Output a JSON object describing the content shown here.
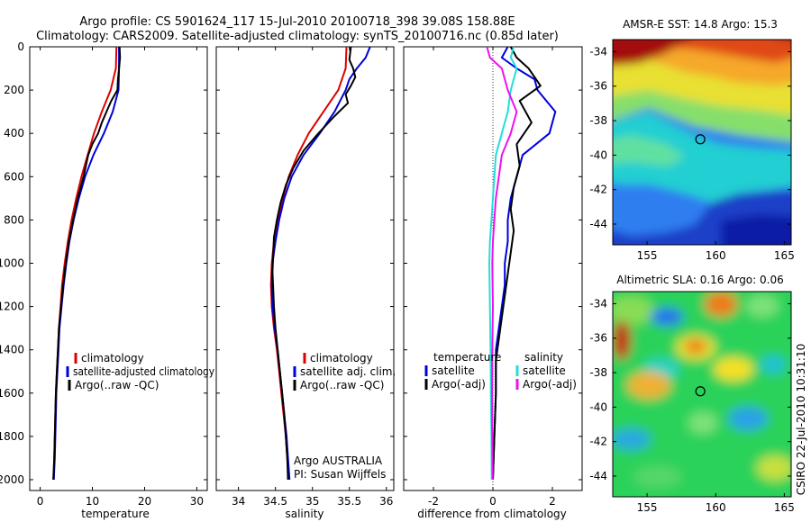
{
  "figure": {
    "title_line1": "Argo profile: CS 5901624_117 15-Jul-2010 20100718_398 39.08S 158.88E",
    "title_line2": "Climatology: CARS2009. Satellite-adjusted climatology: synTS_20100716.nc (0.85d later)",
    "side_label": "CSIRO 22-Jul-2010 10:31:10",
    "credit_line1": "Argo AUSTRALIA",
    "credit_line2": "PI: Susan Wijffels"
  },
  "colors": {
    "climatology": "#dd0000",
    "satellite": "#0000dd",
    "argo": "#000000",
    "salinity_satellite": "#22dddd",
    "salinity_argo": "#ee11ee"
  },
  "chart_data": [
    {
      "type": "line",
      "panel": "temperature",
      "xlabel": "temperature",
      "ylabel": "",
      "xlim": [
        -2,
        32
      ],
      "ylim": [
        2050,
        0
      ],
      "y_reversed": true,
      "xticks": [
        0,
        10,
        20,
        30
      ],
      "yticks": [
        0,
        200,
        400,
        600,
        800,
        1000,
        1200,
        1400,
        1600,
        1800,
        2000
      ],
      "legend_position": "lower-center",
      "legend": [
        "climatology",
        "satellite-adjusted climatology",
        "Argo(..raw -QC)"
      ],
      "series": [
        {
          "name": "climatology",
          "color_key": "climatology",
          "points": [
            [
              14.6,
              0
            ],
            [
              14.5,
              100
            ],
            [
              13.5,
              200
            ],
            [
              11.8,
              300
            ],
            [
              10.3,
              400
            ],
            [
              9.1,
              500
            ],
            [
              7.9,
              600
            ],
            [
              6.9,
              700
            ],
            [
              6.0,
              800
            ],
            [
              5.3,
              900
            ],
            [
              4.7,
              1000
            ],
            [
              4.2,
              1100
            ],
            [
              3.9,
              1200
            ],
            [
              3.6,
              1300
            ],
            [
              3.4,
              1400
            ],
            [
              3.2,
              1500
            ],
            [
              3.0,
              1600
            ],
            [
              2.9,
              1700
            ],
            [
              2.8,
              1800
            ],
            [
              2.7,
              1900
            ],
            [
              2.6,
              2000
            ]
          ]
        },
        {
          "name": "satellite-adjusted climatology",
          "color_key": "satellite",
          "points": [
            [
              15.1,
              0
            ],
            [
              15.1,
              100
            ],
            [
              15.0,
              200
            ],
            [
              13.9,
              300
            ],
            [
              12.2,
              400
            ],
            [
              10.2,
              500
            ],
            [
              8.6,
              600
            ],
            [
              7.4,
              700
            ],
            [
              6.4,
              800
            ],
            [
              5.6,
              900
            ],
            [
              5.0,
              1000
            ],
            [
              4.5,
              1100
            ],
            [
              4.1,
              1200
            ],
            [
              3.7,
              1300
            ],
            [
              3.5,
              1400
            ],
            [
              3.3,
              1500
            ],
            [
              3.1,
              1600
            ],
            [
              3.0,
              1700
            ],
            [
              2.9,
              1800
            ],
            [
              2.8,
              1900
            ],
            [
              2.6,
              2000
            ]
          ]
        },
        {
          "name": "Argo(..raw -QC)",
          "color_key": "argo",
          "points": [
            [
              15.2,
              0
            ],
            [
              15.3,
              50
            ],
            [
              15.1,
              100
            ],
            [
              14.9,
              150
            ],
            [
              14.8,
              200
            ],
            [
              13.6,
              250
            ],
            [
              12.7,
              300
            ],
            [
              11.8,
              350
            ],
            [
              11.1,
              400
            ],
            [
              10.0,
              450
            ],
            [
              9.2,
              500
            ],
            [
              8.3,
              600
            ],
            [
              7.2,
              700
            ],
            [
              6.3,
              800
            ],
            [
              5.5,
              900
            ],
            [
              4.9,
              1000
            ],
            [
              4.4,
              1100
            ],
            [
              4.0,
              1200
            ],
            [
              3.6,
              1300
            ],
            [
              3.4,
              1400
            ],
            [
              3.2,
              1500
            ],
            [
              3.0,
              1600
            ],
            [
              2.9,
              1700
            ],
            [
              2.8,
              1800
            ],
            [
              2.7,
              1900
            ],
            [
              2.5,
              2000
            ]
          ]
        }
      ]
    },
    {
      "type": "line",
      "panel": "salinity",
      "xlabel": "salinity",
      "ylabel": "",
      "xlim": [
        33.7,
        36.1
      ],
      "ylim": [
        2050,
        0
      ],
      "y_reversed": true,
      "xticks": [
        34,
        34.5,
        35,
        35.5,
        36
      ],
      "xtick_labels": [
        "34",
        "34.5",
        "35",
        "35.5",
        "36"
      ],
      "yticks": [
        0,
        200,
        400,
        600,
        800,
        1000,
        1200,
        1400,
        1600,
        1800,
        2000
      ],
      "legend_position": "lower-center",
      "legend": [
        "climatology",
        "satellite adj. clim.",
        "Argo(..raw -QC)"
      ],
      "series": [
        {
          "name": "climatology",
          "color_key": "climatology",
          "points": [
            [
              35.46,
              0
            ],
            [
              35.45,
              100
            ],
            [
              35.35,
              200
            ],
            [
              35.15,
              300
            ],
            [
              34.95,
              400
            ],
            [
              34.8,
              500
            ],
            [
              34.68,
              600
            ],
            [
              34.6,
              700
            ],
            [
              34.53,
              800
            ],
            [
              34.48,
              900
            ],
            [
              34.45,
              1000
            ],
            [
              34.44,
              1100
            ],
            [
              34.45,
              1200
            ],
            [
              34.48,
              1300
            ],
            [
              34.52,
              1400
            ],
            [
              34.55,
              1500
            ],
            [
              34.58,
              1600
            ],
            [
              34.61,
              1700
            ],
            [
              34.64,
              1800
            ],
            [
              34.66,
              1900
            ],
            [
              34.68,
              2000
            ]
          ]
        },
        {
          "name": "satellite adj. clim.",
          "color_key": "satellite",
          "points": [
            [
              35.78,
              0
            ],
            [
              35.72,
              50
            ],
            [
              35.6,
              100
            ],
            [
              35.5,
              150
            ],
            [
              35.45,
              200
            ],
            [
              35.3,
              300
            ],
            [
              35.1,
              400
            ],
            [
              34.88,
              500
            ],
            [
              34.72,
              600
            ],
            [
              34.62,
              700
            ],
            [
              34.55,
              800
            ],
            [
              34.5,
              900
            ],
            [
              34.46,
              1000
            ],
            [
              34.45,
              1100
            ],
            [
              34.46,
              1200
            ],
            [
              34.49,
              1300
            ],
            [
              34.53,
              1400
            ],
            [
              34.56,
              1500
            ],
            [
              34.59,
              1600
            ],
            [
              34.62,
              1700
            ],
            [
              34.65,
              1800
            ],
            [
              34.67,
              1900
            ],
            [
              34.69,
              2000
            ]
          ]
        },
        {
          "name": "Argo(..raw -QC)",
          "color_key": "argo",
          "points": [
            [
              35.52,
              0
            ],
            [
              35.5,
              60
            ],
            [
              35.55,
              100
            ],
            [
              35.58,
              140
            ],
            [
              35.52,
              180
            ],
            [
              35.45,
              220
            ],
            [
              35.48,
              260
            ],
            [
              35.3,
              320
            ],
            [
              35.08,
              400
            ],
            [
              34.88,
              480
            ],
            [
              34.74,
              560
            ],
            [
              34.64,
              640
            ],
            [
              34.57,
              720
            ],
            [
              34.52,
              800
            ],
            [
              34.48,
              880
            ],
            [
              34.47,
              960
            ],
            [
              34.46,
              1040
            ],
            [
              34.47,
              1120
            ],
            [
              34.48,
              1200
            ],
            [
              34.5,
              1300
            ],
            [
              34.53,
              1400
            ],
            [
              34.56,
              1500
            ],
            [
              34.59,
              1600
            ],
            [
              34.62,
              1700
            ],
            [
              34.64,
              1800
            ],
            [
              34.66,
              1900
            ],
            [
              34.67,
              2000
            ]
          ]
        }
      ]
    },
    {
      "type": "line",
      "panel": "difference",
      "xlabel": "difference from climatology",
      "ylabel": "",
      "xlim": [
        -3,
        3
      ],
      "ylim": [
        2050,
        0
      ],
      "y_reversed": true,
      "xticks": [
        -2,
        0,
        2
      ],
      "yticks": [
        0,
        200,
        400,
        600,
        800,
        1000,
        1200,
        1400,
        1600,
        1800,
        2000
      ],
      "zero_line": "dotted",
      "legend_position": "lower-center",
      "legend_temperature_title": "temperature",
      "legend_salinity_title": "salinity",
      "legend_temperature": [
        "satellite",
        "Argo(-adj)"
      ],
      "legend_salinity": [
        "satellite",
        "Argo(-adj)"
      ],
      "series": [
        {
          "name": "temperature satellite",
          "color_key": "satellite",
          "points": [
            [
              0.5,
              0
            ],
            [
              0.3,
              50
            ],
            [
              0.8,
              100
            ],
            [
              1.4,
              150
            ],
            [
              1.5,
              200
            ],
            [
              2.1,
              300
            ],
            [
              1.9,
              400
            ],
            [
              1.0,
              500
            ],
            [
              0.8,
              600
            ],
            [
              0.6,
              700
            ],
            [
              0.5,
              800
            ],
            [
              0.5,
              900
            ],
            [
              0.4,
              1000
            ],
            [
              0.4,
              1100
            ],
            [
              0.3,
              1200
            ],
            [
              0.2,
              1300
            ],
            [
              0.1,
              1400
            ],
            [
              0.1,
              1600
            ],
            [
              0.05,
              1800
            ],
            [
              0.0,
              2000
            ]
          ]
        },
        {
          "name": "temperature Argo(-adj)",
          "color_key": "argo",
          "points": [
            [
              0.6,
              0
            ],
            [
              0.8,
              50
            ],
            [
              1.2,
              100
            ],
            [
              1.6,
              180
            ],
            [
              0.9,
              250
            ],
            [
              1.3,
              350
            ],
            [
              0.8,
              450
            ],
            [
              0.9,
              550
            ],
            [
              0.7,
              650
            ],
            [
              0.6,
              750
            ],
            [
              0.7,
              850
            ],
            [
              0.6,
              950
            ],
            [
              0.5,
              1050
            ],
            [
              0.4,
              1150
            ],
            [
              0.3,
              1250
            ],
            [
              0.2,
              1350
            ],
            [
              0.1,
              1450
            ],
            [
              0.1,
              1600
            ],
            [
              0.05,
              1800
            ],
            [
              0.0,
              2000
            ]
          ]
        },
        {
          "name": "salinity satellite",
          "color_key": "salinity_satellite",
          "points": [
            [
              0.7,
              0
            ],
            [
              0.6,
              50
            ],
            [
              0.8,
              100
            ],
            [
              0.6,
              200
            ],
            [
              0.5,
              300
            ],
            [
              0.3,
              400
            ],
            [
              0.1,
              500
            ],
            [
              0.05,
              600
            ],
            [
              0.0,
              700
            ],
            [
              -0.05,
              800
            ],
            [
              -0.1,
              900
            ],
            [
              -0.12,
              1000
            ],
            [
              -0.1,
              1200
            ],
            [
              -0.08,
              1400
            ],
            [
              -0.07,
              1600
            ],
            [
              -0.05,
              1800
            ],
            [
              -0.04,
              2000
            ]
          ]
        },
        {
          "name": "salinity Argo(-adj)",
          "color_key": "salinity_argo",
          "points": [
            [
              -0.2,
              0
            ],
            [
              -0.1,
              50
            ],
            [
              0.3,
              100
            ],
            [
              0.5,
              200
            ],
            [
              0.8,
              300
            ],
            [
              0.6,
              400
            ],
            [
              0.3,
              500
            ],
            [
              0.2,
              600
            ],
            [
              0.1,
              700
            ],
            [
              0.05,
              800
            ],
            [
              0.0,
              900
            ],
            [
              -0.02,
              1000
            ],
            [
              0.0,
              1200
            ],
            [
              -0.02,
              1400
            ],
            [
              -0.03,
              1600
            ],
            [
              -0.02,
              1800
            ],
            [
              -0.01,
              2000
            ]
          ]
        }
      ]
    },
    {
      "type": "heatmap",
      "panel": "sst_map",
      "title": "AMSR-E SST: 14.8 Argo: 15.3",
      "xlim": [
        152.5,
        165.5
      ],
      "ylim": [
        -45.2,
        -33.3
      ],
      "xticks": [
        155,
        160,
        165
      ],
      "yticks": [
        -34,
        -36,
        -38,
        -40,
        -42,
        -44
      ],
      "marker": {
        "lon": 158.88,
        "lat": -39.08
      },
      "colormap": "jet"
    },
    {
      "type": "heatmap",
      "panel": "sla_map",
      "title": "Altimetric SLA: 0.16 Argo: 0.06",
      "xlim": [
        152.5,
        165.5
      ],
      "ylim": [
        -45.2,
        -33.3
      ],
      "xticks": [
        155,
        160,
        165
      ],
      "yticks": [
        -34,
        -36,
        -38,
        -40,
        -42,
        -44
      ],
      "marker": {
        "lon": 158.88,
        "lat": -39.08
      },
      "colormap": "jet"
    }
  ]
}
